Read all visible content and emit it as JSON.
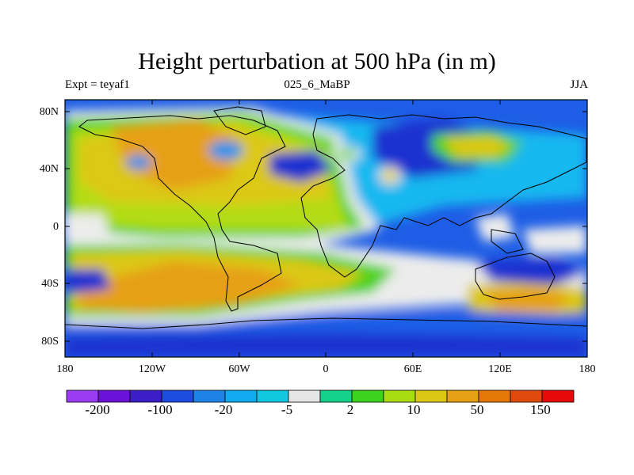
{
  "title": "Height perturbation at 500 hPa (in m)",
  "subtitle_left": "Expt = teyaf1",
  "subtitle_center": "025_6_MaBP",
  "subtitle_right": "JJA",
  "lat_labels": [
    "80N",
    "40N",
    "0",
    "40S",
    "80S"
  ],
  "lon_labels": [
    "180",
    "120W",
    "60W",
    "0",
    "60E",
    "120E",
    "180"
  ],
  "colorbar": {
    "labels": [
      "-200",
      "-100",
      "-20",
      "-5",
      "2",
      "10",
      "50",
      "150"
    ],
    "colors": [
      "#9a3cf0",
      "#6a12d8",
      "#3c1ec8",
      "#1e4be0",
      "#1e82e6",
      "#12aaf0",
      "#10c8e0",
      "#e6e6e6",
      "#14d28c",
      "#3cd21e",
      "#aadc14",
      "#dcc814",
      "#e6a014",
      "#e6780a",
      "#e04a0c",
      "#e60a0a"
    ]
  },
  "palette": {
    "deep_blue": "#1e30d0",
    "blue": "#1e5ee6",
    "light_blue": "#1e94ec",
    "cyan": "#14b8f0",
    "white": "#ececec",
    "teal": "#14d28c",
    "green": "#50d21e",
    "yellow_green": "#b4dc14",
    "yellow": "#dcc814",
    "orange": "#e6a014"
  }
}
